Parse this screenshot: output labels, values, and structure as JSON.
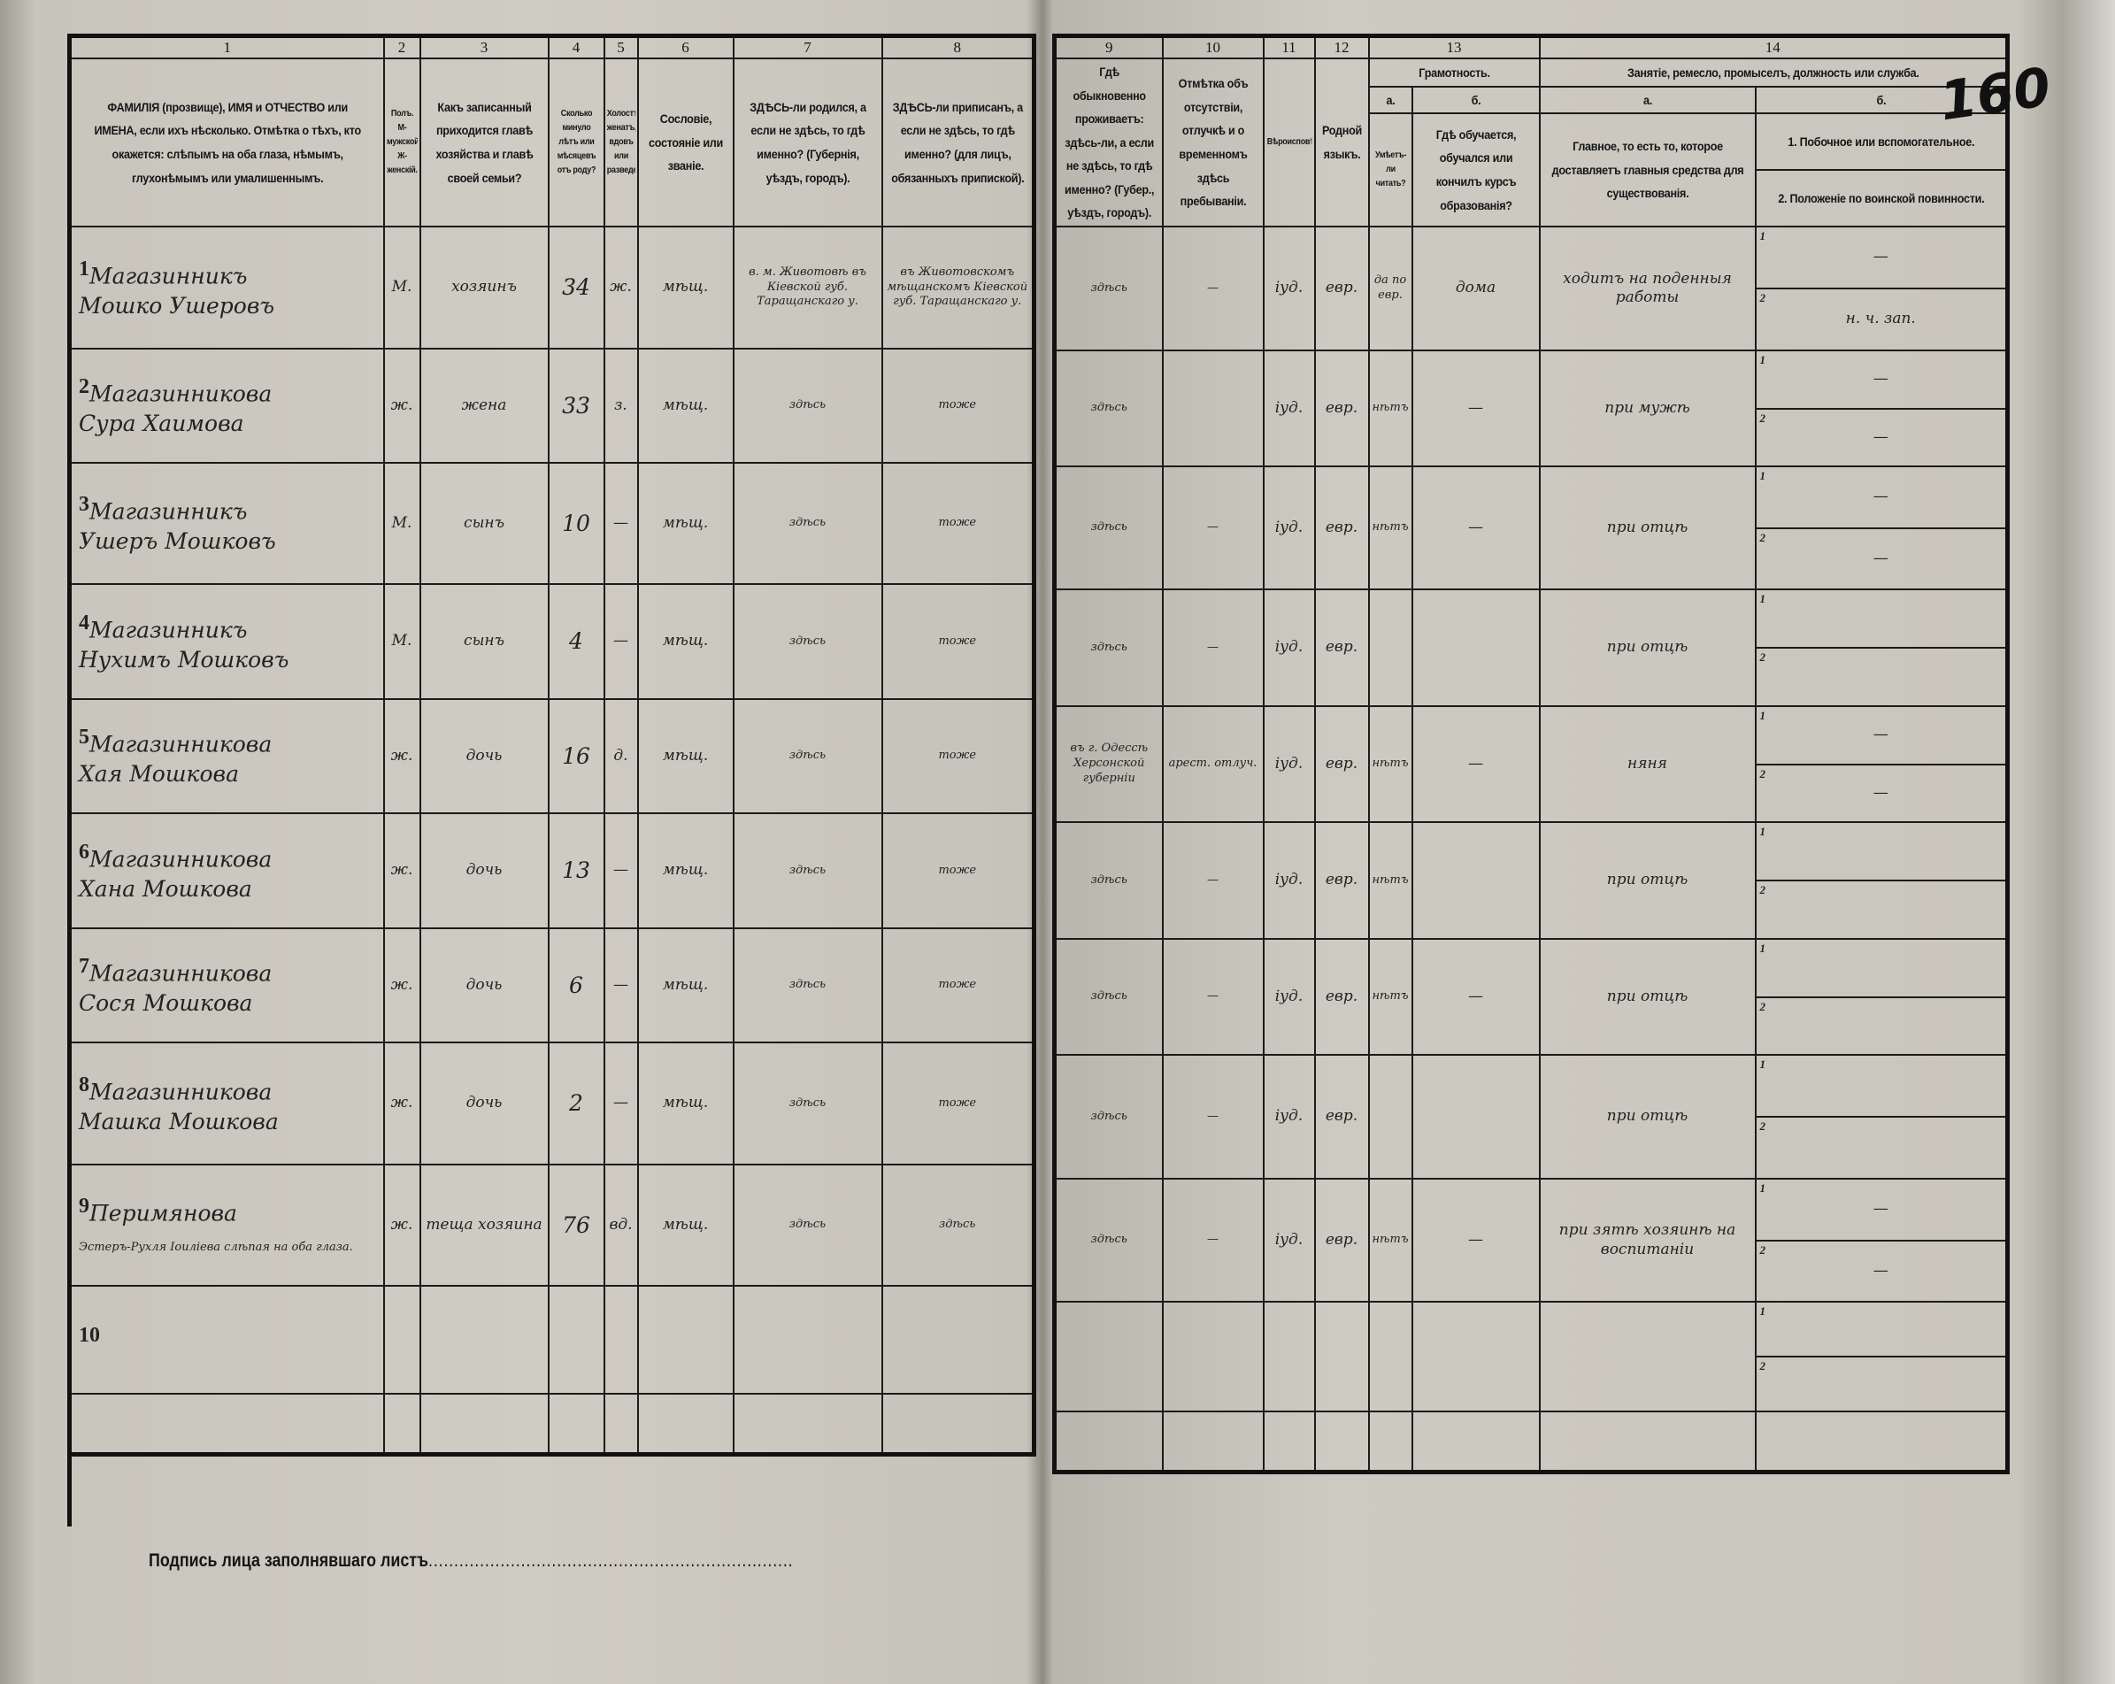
{
  "sheet_number": "160",
  "left_header": [
    {
      "num": "1",
      "text": "ФАМИЛІЯ (прозвище), ИМЯ и ОТЧЕСТВО или ИМЕНА, если ихъ нѣсколько. Отмѣтка о тѣхъ, кто окажется: слѣпымъ на оба глаза, нѣмымъ, глухонѣмымъ или умалишеннымъ."
    },
    {
      "num": "2",
      "text": "Полъ. М-мужской. Ж-женскій."
    },
    {
      "num": "3",
      "text": "Какъ записанный приходится главѣ хозяйства и главѣ своей семьи?"
    },
    {
      "num": "4",
      "text": "Сколько минуло лѣтъ или мѣсяцевъ отъ роду?"
    },
    {
      "num": "5",
      "text": "Холостъ, женатъ, вдовъ или разведенъ."
    },
    {
      "num": "6",
      "text": "Сословіе, состояніе или званіе."
    },
    {
      "num": "7",
      "text": "ЗДѢСЬ-ли родился, а если не здѣсь, то гдѣ именно? (Губернія, уѣздъ, городъ)."
    },
    {
      "num": "8",
      "text": "ЗДѢСЬ-ли приписанъ, а если не здѣсь, то гдѣ именно? (для лицъ, обязанныхъ припиской)."
    }
  ],
  "right_header": {
    "c9": {
      "num": "9",
      "text": "Гдѣ обыкновенно проживаетъ: здѣсь-ли, а если не здѣсь, то гдѣ именно? (Губер., уѣздъ, городъ)."
    },
    "c10": {
      "num": "10",
      "text": "Отмѣтка объ отсутствіи, отлучкѣ и о временномъ здѣсь пребываніи."
    },
    "c11": {
      "num": "11",
      "text": "Вѣроисповѣданіе."
    },
    "c12": {
      "num": "12",
      "text": "Родной языкъ."
    },
    "c13": {
      "num": "13",
      "title": "Грамотность.",
      "a": "а.",
      "b": "б.",
      "a_text": "Умѣетъ-ли читать?",
      "b_text": "Гдѣ обучается, обучался или кончилъ курсъ образованія?"
    },
    "c14": {
      "num": "14",
      "title": "Занятіе, ремесло, промыселъ, должность или служба.",
      "a": "а.",
      "b": "б.",
      "a_text": "Главное, то есть то, которое доставляетъ главныя средства для существованія.",
      "b1_text": "1. Побочное или вспомогательное.",
      "b2_text": "2. Положеніе по воинской повинности."
    }
  },
  "sub_labels": {
    "one": "1",
    "two": "2"
  },
  "rows": [
    {
      "n": "1",
      "surname": "Магазинникъ",
      "name": "Мошко Ушеровъ",
      "sex": "М.",
      "relation": "хозяинъ",
      "age": "34",
      "marital": "ж.",
      "estate": "мѣщ.",
      "born": "в. м. Животовѣ въ Кіевской губ. Таращанскаго у.",
      "registered": "въ Животовскомъ мѣщанскомъ Кіевской губ. Таращанскаго у.",
      "residence": "здѣсь",
      "absence": "—",
      "religion": "іуд.",
      "language": "евр.",
      "literate": "да по евр.",
      "education": "дома",
      "occupation": "ходитъ на поденныя работы",
      "secondary": "—",
      "military": "н. ч. зап."
    },
    {
      "n": "2",
      "surname": "Магазинникова",
      "name": "Сура Хаимова",
      "sex": "ж.",
      "relation": "жена",
      "age": "33",
      "marital": "з.",
      "estate": "мѣщ.",
      "born": "здѣсь",
      "registered": "тоже",
      "residence": "здѣсь",
      "absence": "",
      "religion": "іуд.",
      "language": "евр.",
      "literate": "нѣтъ",
      "education": "—",
      "occupation": "при мужѣ",
      "secondary": "—",
      "military": "—"
    },
    {
      "n": "3",
      "surname": "Магазинникъ",
      "name": "Ушеръ Мошковъ",
      "sex": "М.",
      "relation": "сынъ",
      "age": "10",
      "marital": "—",
      "estate": "мѣщ.",
      "born": "здѣсь",
      "registered": "тоже",
      "residence": "здѣсь",
      "absence": "—",
      "religion": "іуд.",
      "language": "евр.",
      "literate": "нѣтъ",
      "education": "—",
      "occupation": "при отцѣ",
      "secondary": "—",
      "military": "—"
    },
    {
      "n": "4",
      "surname": "Магазинникъ",
      "name": "Нухимъ Мошковъ",
      "sex": "М.",
      "relation": "сынъ",
      "age": "4",
      "marital": "—",
      "estate": "мѣщ.",
      "born": "здѣсь",
      "registered": "тоже",
      "residence": "здѣсь",
      "absence": "—",
      "religion": "іуд.",
      "language": "евр.",
      "literate": "",
      "education": "",
      "occupation": "при отцѣ",
      "secondary": "",
      "military": ""
    },
    {
      "n": "5",
      "surname": "Магазинникова",
      "name": "Хая Мошкова",
      "sex": "ж.",
      "relation": "дочь",
      "age": "16",
      "marital": "д.",
      "estate": "мѣщ.",
      "born": "здѣсь",
      "registered": "тоже",
      "residence": "въ г. Одессѣ Херсонской губерніи",
      "absence": "арест. отлуч.",
      "religion": "іуд.",
      "language": "евр.",
      "literate": "нѣтъ",
      "education": "—",
      "occupation": "няня",
      "secondary": "—",
      "military": "—"
    },
    {
      "n": "6",
      "surname": "Магазинникова",
      "name": "Хана Мошкова",
      "sex": "ж.",
      "relation": "дочь",
      "age": "13",
      "marital": "—",
      "estate": "мѣщ.",
      "born": "здѣсь",
      "registered": "тоже",
      "residence": "здѣсь",
      "absence": "—",
      "religion": "іуд.",
      "language": "евр.",
      "literate": "нѣтъ",
      "education": "",
      "occupation": "при отцѣ",
      "secondary": "",
      "military": ""
    },
    {
      "n": "7",
      "surname": "Магазинникова",
      "name": "Сося Мошкова",
      "sex": "ж.",
      "relation": "дочь",
      "age": "6",
      "marital": "—",
      "estate": "мѣщ.",
      "born": "здѣсь",
      "registered": "тоже",
      "residence": "здѣсь",
      "absence": "—",
      "religion": "іуд.",
      "language": "евр.",
      "literate": "нѣтъ",
      "education": "—",
      "occupation": "при отцѣ",
      "secondary": "",
      "military": ""
    },
    {
      "n": "8",
      "surname": "Магазинникова",
      "name": "Машка Мошкова",
      "sex": "ж.",
      "relation": "дочь",
      "age": "2",
      "marital": "—",
      "estate": "мѣщ.",
      "born": "здѣсь",
      "registered": "тоже",
      "residence": "здѣсь",
      "absence": "—",
      "religion": "іуд.",
      "language": "евр.",
      "literate": "",
      "education": "",
      "occupation": "при отцѣ",
      "secondary": "",
      "military": ""
    },
    {
      "n": "9",
      "surname": "Перимянова",
      "name": "Эстеръ-Рухля Іоиліева слѣпая на оба глаза.",
      "sex": "ж.",
      "relation": "теща хозяина",
      "age": "76",
      "marital": "вд.",
      "estate": "мѣщ.",
      "born": "здѣсь",
      "registered": "здѣсь",
      "residence": "здѣсь",
      "absence": "—",
      "religion": "іуд.",
      "language": "евр.",
      "literate": "нѣтъ",
      "education": "—",
      "occupation": "при зятѣ хозяинѣ на воспитаніи",
      "secondary": "—",
      "military": "—"
    },
    {
      "n": "10",
      "surname": "",
      "name": "",
      "sex": "",
      "relation": "",
      "age": "",
      "marital": "",
      "estate": "",
      "born": "",
      "registered": "",
      "residence": "",
      "absence": "",
      "religion": "",
      "language": "",
      "literate": "",
      "education": "",
      "occupation": "",
      "secondary": "",
      "military": ""
    }
  ],
  "signature_label": "Подпись лица заполнявшаго листъ",
  "signature_dots": "......................................................................."
}
